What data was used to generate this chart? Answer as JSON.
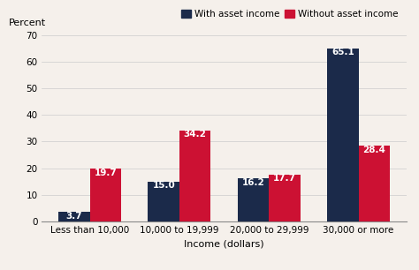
{
  "categories": [
    "Less than 10,000",
    "10,000 to 19,999",
    "20,000 to 29,999",
    "30,000 or more"
  ],
  "with_asset": [
    3.7,
    15.0,
    16.2,
    65.1
  ],
  "without_asset": [
    19.7,
    34.2,
    17.7,
    28.4
  ],
  "color_with": "#1b2a4a",
  "color_without": "#cc1133",
  "ylabel": "Percent",
  "xlabel": "Income (dollars)",
  "ylim": [
    0,
    70
  ],
  "yticks": [
    0,
    10,
    20,
    30,
    40,
    50,
    60,
    70
  ],
  "legend_with": "With asset income",
  "legend_without": "Without asset income",
  "bar_width": 0.35,
  "label_fontsize": 7.5,
  "axis_fontsize": 8,
  "legend_fontsize": 7.5,
  "bg_color": "#f5f0eb"
}
